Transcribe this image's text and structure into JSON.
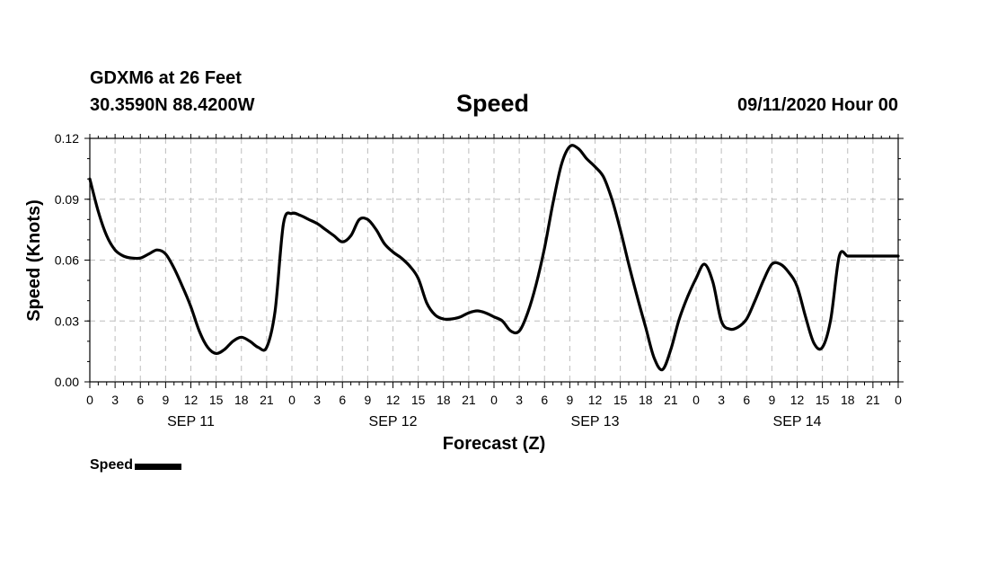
{
  "header": {
    "station": "GDXM6 at 26 Feet",
    "coords": "30.3590N 88.4200W",
    "title": "Speed",
    "run_time": "09/11/2020 Hour 00"
  },
  "legend": {
    "label": "Speed",
    "color": "#000000"
  },
  "chart_data": {
    "type": "line",
    "title": "Speed",
    "xlabel": "Forecast (Z)",
    "ylabel": "Speed (Knots)",
    "ylim": [
      0,
      0.12
    ],
    "xlim": [
      0,
      96
    ],
    "grid": true,
    "legend_position": "bottom-left",
    "y_ticks": [
      "0.00",
      "0.03",
      "0.06",
      "0.09",
      "0.12"
    ],
    "x_tick_labels": [
      "0",
      "3",
      "6",
      "9",
      "12",
      "15",
      "18",
      "21",
      "0",
      "3",
      "6",
      "9",
      "12",
      "15",
      "18",
      "21",
      "0",
      "3",
      "6",
      "9",
      "12",
      "15",
      "18",
      "21",
      "0",
      "3",
      "6",
      "9",
      "12",
      "15",
      "18",
      "21",
      "0"
    ],
    "day_labels": [
      {
        "label": "SEP 11",
        "hour": 12
      },
      {
        "label": "SEP 12",
        "hour": 36
      },
      {
        "label": "SEP 13",
        "hour": 60
      },
      {
        "label": "SEP 14",
        "hour": 84
      }
    ],
    "series": [
      {
        "name": "Speed",
        "color": "#000000",
        "x": [
          0,
          1,
          2,
          3,
          4,
          5,
          6,
          7,
          8,
          9,
          10,
          11,
          12,
          13,
          14,
          15,
          16,
          17,
          18,
          19,
          20,
          21,
          22,
          23,
          24,
          25,
          26,
          27,
          28,
          29,
          30,
          31,
          32,
          33,
          34,
          35,
          36,
          37,
          38,
          39,
          40,
          41,
          42,
          43,
          44,
          45,
          46,
          47,
          48,
          49,
          50,
          51,
          52,
          53,
          54,
          55,
          56,
          57,
          58,
          59,
          60,
          61,
          62,
          63,
          64,
          65,
          66,
          67,
          68,
          69,
          70,
          71,
          72,
          73,
          74,
          75,
          76,
          77,
          78,
          79,
          80,
          81,
          82,
          83,
          84,
          85,
          86,
          87,
          88,
          89,
          90,
          91,
          92,
          93,
          94,
          95,
          96
        ],
        "y": [
          0.1,
          0.084,
          0.072,
          0.065,
          0.062,
          0.061,
          0.061,
          0.063,
          0.065,
          0.063,
          0.056,
          0.047,
          0.037,
          0.025,
          0.017,
          0.014,
          0.016,
          0.02,
          0.022,
          0.02,
          0.017,
          0.017,
          0.035,
          0.078,
          0.083,
          0.082,
          0.08,
          0.078,
          0.075,
          0.072,
          0.069,
          0.072,
          0.08,
          0.08,
          0.075,
          0.068,
          0.064,
          0.061,
          0.057,
          0.051,
          0.039,
          0.033,
          0.031,
          0.031,
          0.032,
          0.034,
          0.035,
          0.034,
          0.032,
          0.03,
          0.025,
          0.025,
          0.034,
          0.048,
          0.066,
          0.088,
          0.107,
          0.116,
          0.115,
          0.11,
          0.106,
          0.101,
          0.09,
          0.075,
          0.058,
          0.042,
          0.027,
          0.012,
          0.006,
          0.016,
          0.031,
          0.042,
          0.051,
          0.058,
          0.049,
          0.03,
          0.026,
          0.027,
          0.031,
          0.04,
          0.05,
          0.058,
          0.058,
          0.054,
          0.047,
          0.032,
          0.019,
          0.017,
          0.031,
          0.062,
          0.062,
          0.062,
          0.062,
          0.062,
          0.062,
          0.062,
          0.062
        ]
      }
    ]
  }
}
